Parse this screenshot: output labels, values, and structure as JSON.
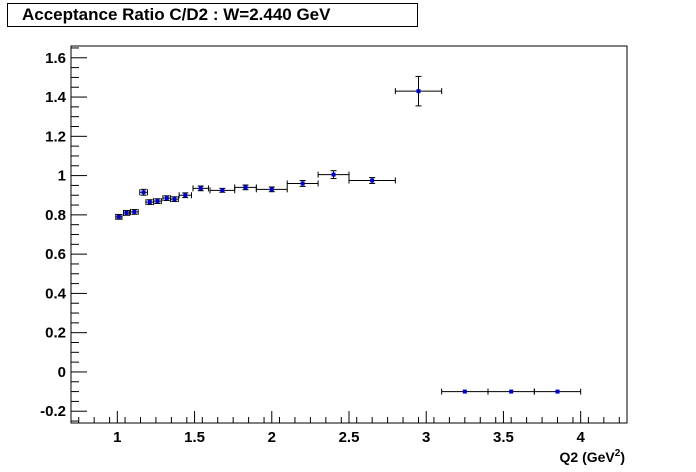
{
  "chart_data": {
    "type": "scatter",
    "title": "Acceptance Ratio C/D2 : W=2.440 GeV",
    "xlabel": "Q2 (GeV",
    "xlabel_sup": "2",
    "xlabel_close": ")",
    "ylabel": "",
    "xlim": [
      0.7,
      4.3
    ],
    "ylim": [
      -0.26,
      1.66
    ],
    "x_ticks": [
      1,
      1.5,
      2,
      2.5,
      3,
      3.5,
      4
    ],
    "x_tick_labels": [
      "1",
      "1.5",
      "2",
      "2.5",
      "3",
      "3.5",
      "4"
    ],
    "y_ticks": [
      -0.2,
      0,
      0.2,
      0.4,
      0.6,
      0.8,
      1,
      1.2,
      1.4,
      1.6
    ],
    "y_tick_labels": [
      "-0.2",
      "0",
      "0.2",
      "0.4",
      "0.6",
      "0.8",
      "1",
      "1.2",
      "1.4",
      "1.6"
    ],
    "grid": false,
    "marker_color": "#0000cc",
    "points": [
      {
        "x": 1.01,
        "y": 0.79,
        "xerr": 0.02,
        "yerr": 0.012
      },
      {
        "x": 1.06,
        "y": 0.81,
        "xerr": 0.02,
        "yerr": 0.012
      },
      {
        "x": 1.11,
        "y": 0.815,
        "xerr": 0.025,
        "yerr": 0.012
      },
      {
        "x": 1.17,
        "y": 0.915,
        "xerr": 0.025,
        "yerr": 0.015
      },
      {
        "x": 1.21,
        "y": 0.865,
        "xerr": 0.025,
        "yerr": 0.012
      },
      {
        "x": 1.26,
        "y": 0.87,
        "xerr": 0.025,
        "yerr": 0.012
      },
      {
        "x": 1.32,
        "y": 0.885,
        "xerr": 0.025,
        "yerr": 0.012
      },
      {
        "x": 1.37,
        "y": 0.88,
        "xerr": 0.025,
        "yerr": 0.012
      },
      {
        "x": 1.44,
        "y": 0.9,
        "xerr": 0.04,
        "yerr": 0.012
      },
      {
        "x": 1.54,
        "y": 0.935,
        "xerr": 0.05,
        "yerr": 0.012
      },
      {
        "x": 1.68,
        "y": 0.925,
        "xerr": 0.08,
        "yerr": 0.01
      },
      {
        "x": 1.83,
        "y": 0.94,
        "xerr": 0.07,
        "yerr": 0.012
      },
      {
        "x": 2.0,
        "y": 0.93,
        "xerr": 0.1,
        "yerr": 0.012
      },
      {
        "x": 2.2,
        "y": 0.96,
        "xerr": 0.1,
        "yerr": 0.015
      },
      {
        "x": 2.4,
        "y": 1.005,
        "xerr": 0.1,
        "yerr": 0.02
      },
      {
        "x": 2.65,
        "y": 0.975,
        "xerr": 0.15,
        "yerr": 0.015
      },
      {
        "x": 2.95,
        "y": 1.43,
        "xerr": 0.15,
        "yerr": 0.075
      },
      {
        "x": 3.25,
        "y": -0.1,
        "xerr": 0.15,
        "yerr": 0.0
      },
      {
        "x": 3.55,
        "y": -0.1,
        "xerr": 0.15,
        "yerr": 0.0
      },
      {
        "x": 3.85,
        "y": -0.1,
        "xerr": 0.15,
        "yerr": 0.0
      }
    ]
  }
}
